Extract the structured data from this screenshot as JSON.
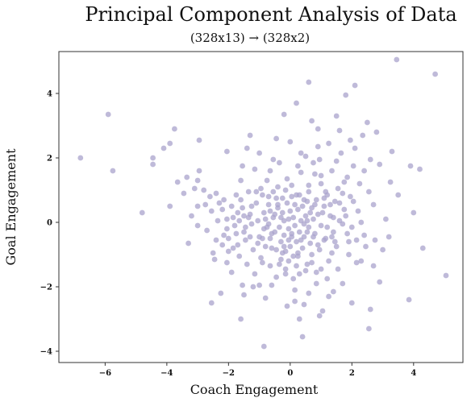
{
  "chart_data": {
    "type": "scatter",
    "title": "Principal Component Analysis of Data",
    "subtitle": "(328x13)  →  (328x2)",
    "xlabel": "Coach Engagement",
    "ylabel": "Goal Engagement",
    "xlim": [
      -7.5,
      5.6
    ],
    "ylim": [
      -4.35,
      5.3
    ],
    "xticks": [
      -6,
      -4,
      -2,
      0,
      2,
      4
    ],
    "yticks": [
      -4,
      -2,
      0,
      2,
      4
    ],
    "grid": false,
    "point_color": "#a9a3cc",
    "series": [
      {
        "points": [
          [
            -6.8,
            2.0
          ],
          [
            -5.9,
            3.35
          ],
          [
            -5.75,
            1.6
          ],
          [
            -4.8,
            0.3
          ],
          [
            -4.45,
            1.8
          ],
          [
            -4.45,
            2.0
          ],
          [
            -4.1,
            2.3
          ],
          [
            -3.9,
            2.45
          ],
          [
            -3.75,
            2.9
          ],
          [
            -3.65,
            1.25
          ],
          [
            -3.35,
            1.4
          ],
          [
            -3.3,
            -0.65
          ],
          [
            -3.1,
            1.05
          ],
          [
            -3.0,
            1.3
          ],
          [
            -3.0,
            0.5
          ],
          [
            -2.95,
            2.55
          ],
          [
            -2.95,
            1.6
          ],
          [
            -2.8,
            1.0
          ],
          [
            -2.6,
            0.8
          ],
          [
            -2.55,
            -2.5
          ],
          [
            -2.5,
            -0.95
          ],
          [
            -2.45,
            -1.15
          ],
          [
            -2.4,
            0.9
          ],
          [
            -2.3,
            0.6
          ],
          [
            -2.2,
            0.4
          ],
          [
            -2.15,
            -0.4
          ],
          [
            -2.05,
            0.1
          ],
          [
            -2.05,
            -0.2
          ],
          [
            -2.0,
            -0.5
          ],
          [
            -2.0,
            -0.9
          ],
          [
            -1.9,
            0.5
          ],
          [
            -1.85,
            0.15
          ],
          [
            -1.8,
            -0.1
          ],
          [
            -1.75,
            -0.35
          ],
          [
            -1.7,
            -0.7
          ],
          [
            -1.65,
            -1.05
          ],
          [
            -1.6,
            0.7
          ],
          [
            -1.55,
            0.45
          ],
          [
            -1.5,
            0.2
          ],
          [
            -1.5,
            -0.3
          ],
          [
            -1.45,
            -0.55
          ],
          [
            -1.4,
            -1.3
          ],
          [
            -1.35,
            0.95
          ],
          [
            -1.3,
            0.25
          ],
          [
            -1.25,
            -0.05
          ],
          [
            -1.2,
            -0.85
          ],
          [
            -1.15,
            -1.6
          ],
          [
            -1.1,
            0.6
          ],
          [
            -1.05,
            0.05
          ],
          [
            -1.0,
            -0.45
          ],
          [
            -0.95,
            -1.1
          ],
          [
            -0.9,
            0.85
          ],
          [
            -0.85,
            0.3
          ],
          [
            -0.85,
            -0.2
          ],
          [
            -0.8,
            -0.75
          ],
          [
            -0.8,
            -2.35
          ],
          [
            -0.75,
            1.3
          ],
          [
            -0.7,
            0.55
          ],
          [
            -0.7,
            -0.05
          ],
          [
            -0.65,
            -0.5
          ],
          [
            -0.65,
            -1.35
          ],
          [
            -0.6,
            -1.95
          ],
          [
            -0.55,
            0.95
          ],
          [
            -0.5,
            0.25
          ],
          [
            -0.5,
            -0.3
          ],
          [
            -0.45,
            -0.85
          ],
          [
            -0.45,
            -1.7
          ],
          [
            -0.4,
            1.1
          ],
          [
            -0.4,
            0.45
          ],
          [
            -0.35,
            -0.15
          ],
          [
            -0.3,
            -0.6
          ],
          [
            -0.3,
            -1.15
          ],
          [
            -0.25,
            0.75
          ],
          [
            -0.2,
            0.05
          ],
          [
            -0.2,
            -0.4
          ],
          [
            -0.15,
            -0.9
          ],
          [
            -0.15,
            -1.45
          ],
          [
            -0.1,
            0.6
          ],
          [
            -0.05,
            -0.2
          ],
          [
            -0.05,
            -1.2
          ],
          [
            0.0,
            0.35
          ],
          [
            0.0,
            -0.75
          ],
          [
            0.05,
            1.15
          ],
          [
            0.05,
            -0.45
          ],
          [
            0.1,
            0.15
          ],
          [
            0.1,
            -1.75
          ],
          [
            0.15,
            -0.1
          ],
          [
            0.15,
            -2.45
          ],
          [
            0.2,
            0.85
          ],
          [
            0.2,
            -0.6
          ],
          [
            0.25,
            0.4
          ],
          [
            0.25,
            -1.05
          ],
          [
            0.3,
            -0.3
          ],
          [
            0.3,
            -3.0
          ],
          [
            0.35,
            1.55
          ],
          [
            0.35,
            0.05
          ],
          [
            0.4,
            -0.8
          ],
          [
            0.4,
            -3.55
          ],
          [
            0.45,
            0.7
          ],
          [
            0.45,
            -0.45
          ],
          [
            0.5,
            2.05
          ],
          [
            0.5,
            0.2
          ],
          [
            0.55,
            -1.3
          ],
          [
            0.6,
            0.95
          ],
          [
            0.6,
            -0.15
          ],
          [
            0.65,
            -0.65
          ],
          [
            0.7,
            0.45
          ],
          [
            0.7,
            -1.0
          ],
          [
            0.75,
            1.85
          ],
          [
            0.75,
            0.1
          ],
          [
            0.8,
            -0.35
          ],
          [
            0.85,
            0.7
          ],
          [
            0.85,
            -1.55
          ],
          [
            0.9,
            0.25
          ],
          [
            0.95,
            -0.85
          ],
          [
            1.0,
            1.2
          ],
          [
            1.0,
            -0.1
          ],
          [
            1.05,
            -2.75
          ],
          [
            1.1,
            0.5
          ],
          [
            1.15,
            -0.5
          ],
          [
            1.2,
            0.85
          ],
          [
            1.25,
            -1.2
          ],
          [
            1.3,
            0.2
          ],
          [
            1.35,
            1.6
          ],
          [
            1.4,
            -0.3
          ],
          [
            1.45,
            0.65
          ],
          [
            1.5,
            -0.75
          ],
          [
            1.55,
            1.05
          ],
          [
            1.6,
            0.05
          ],
          [
            1.65,
            2.15
          ],
          [
            1.7,
            -1.9
          ],
          [
            1.75,
            0.4
          ],
          [
            1.8,
            3.95
          ],
          [
            1.85,
            1.4
          ],
          [
            1.9,
            -0.6
          ],
          [
            1.95,
            0.8
          ],
          [
            2.0,
            -0.15
          ],
          [
            2.05,
            1.75
          ],
          [
            2.1,
            4.25
          ],
          [
            2.15,
            -1.25
          ],
          [
            2.2,
            0.35
          ],
          [
            2.35,
            2.7
          ],
          [
            2.4,
            -0.4
          ],
          [
            2.5,
            3.1
          ],
          [
            2.55,
            -3.3
          ],
          [
            2.6,
            -2.7
          ],
          [
            2.7,
            0.55
          ],
          [
            2.8,
            2.8
          ],
          [
            2.9,
            1.8
          ],
          [
            3.0,
            -0.85
          ],
          [
            3.25,
            1.25
          ],
          [
            3.45,
            5.05
          ],
          [
            3.85,
            -2.4
          ],
          [
            3.9,
            1.75
          ],
          [
            4.0,
            0.3
          ],
          [
            4.2,
            1.65
          ],
          [
            4.3,
            -0.8
          ],
          [
            4.7,
            4.6
          ],
          [
            5.05,
            -1.65
          ],
          [
            -0.2,
            3.35
          ],
          [
            0.2,
            3.7
          ],
          [
            0.6,
            4.35
          ],
          [
            -0.85,
            -3.85
          ],
          [
            0.95,
            -2.9
          ],
          [
            -0.35,
            1.85
          ],
          [
            -1.0,
            2.15
          ],
          [
            -1.4,
            2.3
          ],
          [
            -2.05,
            2.2
          ],
          [
            -1.55,
            1.75
          ],
          [
            -0.65,
            1.6
          ],
          [
            0.35,
            2.15
          ],
          [
            0.9,
            2.35
          ],
          [
            1.25,
            2.45
          ],
          [
            1.5,
            1.9
          ],
          [
            2.4,
            1.6
          ],
          [
            -1.2,
            -2.0
          ],
          [
            -2.25,
            -2.2
          ],
          [
            -1.9,
            -1.55
          ],
          [
            -1.55,
            -1.95
          ],
          [
            0.15,
            -2.1
          ],
          [
            0.6,
            -2.2
          ],
          [
            1.4,
            -2.15
          ],
          [
            2.0,
            -2.5
          ],
          [
            2.7,
            -1.35
          ],
          [
            3.2,
            -0.45
          ],
          [
            2.3,
            -1.2
          ],
          [
            -3.2,
            0.2
          ],
          [
            -2.7,
            -0.25
          ],
          [
            -2.2,
            -0.7
          ],
          [
            -1.0,
            -1.95
          ],
          [
            0.3,
            -1.6
          ],
          [
            1.2,
            -1.75
          ],
          [
            1.9,
            -1.0
          ],
          [
            1.1,
            -0.55
          ],
          [
            0.55,
            0.65
          ],
          [
            -0.25,
            -0.95
          ],
          [
            -1.75,
            0.85
          ],
          [
            -2.35,
            0.05
          ],
          [
            2.55,
            0.95
          ],
          [
            3.1,
            0.1
          ],
          [
            1.75,
            1.25
          ],
          [
            0.8,
            1.5
          ],
          [
            -0.1,
            1.35
          ],
          [
            -0.95,
            1.05
          ],
          [
            -1.6,
            1.3
          ],
          [
            0.45,
            -0.05
          ],
          [
            -0.55,
            0.15
          ],
          [
            1.35,
            -0.95
          ],
          [
            -1.3,
            -0.45
          ],
          [
            0.05,
            0.8
          ],
          [
            -0.75,
            -0.15
          ],
          [
            0.9,
            -0.7
          ],
          [
            1.6,
            0.6
          ],
          [
            -2.55,
            0.35
          ],
          [
            2.25,
            1.2
          ],
          [
            -0.35,
            -1.3
          ],
          [
            0.7,
            -1.25
          ],
          [
            1.05,
            0.3
          ],
          [
            -1.1,
            0.95
          ],
          [
            -0.6,
            -0.8
          ],
          [
            0.25,
            -0.95
          ],
          [
            1.4,
            0.15
          ],
          [
            1.85,
            -0.35
          ],
          [
            2.05,
            0.65
          ],
          [
            -1.45,
            -0.15
          ],
          [
            -0.9,
            -0.5
          ],
          [
            0.6,
            1.15
          ],
          [
            -0.05,
            -0.55
          ],
          [
            0.4,
            0.5
          ],
          [
            1.15,
            0.95
          ],
          [
            1.7,
            -0.05
          ],
          [
            -0.45,
            0.75
          ],
          [
            -1.25,
            0.5
          ],
          [
            -1.85,
            -0.8
          ],
          [
            -2.15,
            0.7
          ],
          [
            0.85,
            -1.9
          ],
          [
            1.55,
            -1.45
          ],
          [
            2.45,
            -0.75
          ],
          [
            -0.15,
            1.0
          ],
          [
            -0.65,
            0.35
          ],
          [
            0.2,
            -1.35
          ],
          [
            1.0,
            -1.45
          ],
          [
            1.3,
            0.55
          ],
          [
            -0.3,
            0.15
          ],
          [
            0.55,
            -0.3
          ],
          [
            -1.65,
            0.05
          ],
          [
            2.1,
            2.3
          ],
          [
            2.9,
            -1.85
          ],
          [
            -0.1,
            -2.6
          ],
          [
            0.45,
            -2.55
          ],
          [
            1.25,
            -2.3
          ],
          [
            -1.5,
            -2.25
          ],
          [
            -2.05,
            -1.25
          ],
          [
            -2.75,
            0.55
          ],
          [
            -3.45,
            0.9
          ],
          [
            2.6,
            1.95
          ],
          [
            3.5,
            0.85
          ],
          [
            1.95,
            2.55
          ],
          [
            0.25,
            1.75
          ],
          [
            -0.55,
            1.95
          ],
          [
            -1.15,
            1.65
          ],
          [
            0.95,
            1.95
          ],
          [
            1.6,
            2.85
          ],
          [
            0.0,
            2.5
          ],
          [
            -0.8,
            0.1
          ],
          [
            0.35,
            -0.55
          ],
          [
            0.75,
            -0.45
          ],
          [
            1.45,
            -0.6
          ],
          [
            -0.2,
            -0.75
          ],
          [
            -1.05,
            -0.65
          ],
          [
            0.65,
            0.3
          ],
          [
            1.1,
            0.75
          ],
          [
            -0.4,
            0.55
          ],
          [
            0.15,
            0.55
          ],
          [
            1.8,
            0.2
          ],
          [
            2.15,
            -0.55
          ],
          [
            -1.35,
            0.15
          ],
          [
            -0.9,
            -1.25
          ],
          [
            0.1,
            -1.05
          ],
          [
            0.5,
            -1.5
          ],
          [
            1.2,
            -0.15
          ],
          [
            0.8,
            0.55
          ],
          [
            -0.6,
            -0.35
          ],
          [
            -0.25,
            0.3
          ],
          [
            0.3,
            0.85
          ],
          [
            1.0,
            1.45
          ],
          [
            1.7,
            0.9
          ],
          [
            -1.7,
            0.3
          ],
          [
            -0.05,
            0.1
          ],
          [
            0.55,
            0.05
          ],
          [
            -0.7,
            0.8
          ],
          [
            1.35,
            -0.45
          ],
          [
            0.05,
            -0.35
          ],
          [
            -0.15,
            -1.6
          ],
          [
            2.3,
            0.0
          ],
          [
            -2.4,
            -0.55
          ],
          [
            2.75,
            -0.55
          ],
          [
            -3.0,
            -0.1
          ],
          [
            3.3,
            2.2
          ],
          [
            -3.9,
            0.5
          ],
          [
            1.5,
            3.3
          ],
          [
            -0.45,
            2.6
          ],
          [
            0.9,
            2.9
          ],
          [
            -1.6,
            -3.0
          ],
          [
            0.7,
            3.15
          ],
          [
            -1.3,
            2.7
          ]
        ]
      }
    ]
  }
}
